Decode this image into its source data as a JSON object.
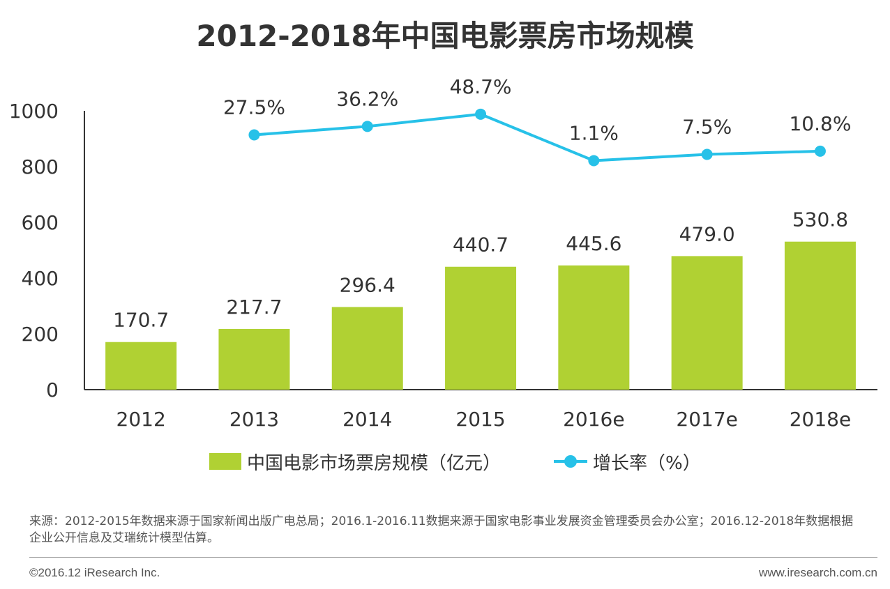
{
  "chart_data": {
    "type": "bar",
    "title": "2012-2018年中国电影票房市场规模",
    "categories": [
      "2012",
      "2013",
      "2014",
      "2015",
      "2016e",
      "2017e",
      "2018e"
    ],
    "series": [
      {
        "name": "中国电影市场票房规模（亿元）",
        "type": "bar",
        "values": [
          170.7,
          217.7,
          296.4,
          440.7,
          445.6,
          479.0,
          530.8
        ],
        "labels": [
          "170.7",
          "217.7",
          "296.4",
          "440.7",
          "445.6",
          "479.0",
          "530.8"
        ],
        "color": "#b0d133"
      },
      {
        "name": "增长率（%）",
        "type": "line",
        "values": [
          null,
          27.5,
          36.2,
          48.7,
          1.1,
          7.5,
          10.8
        ],
        "labels": [
          "",
          "27.5%",
          "36.2%",
          "48.7%",
          "1.1%",
          "7.5%",
          "10.8%"
        ],
        "color": "#27c1e8"
      }
    ],
    "yticks": [
      "0",
      "200",
      "400",
      "600",
      "800",
      "1000"
    ],
    "ylim": [
      0,
      1000
    ],
    "xlabel": "",
    "ylabel": ""
  },
  "legend": {
    "bar_label": "中国电影市场票房规模（亿元）",
    "line_label": "增长率（%）"
  },
  "footer": {
    "source": "来源：2012-2015年数据来源于国家新闻出版广电总局；2016.1-2016.11数据来源于国家电影事业发展资金管理委员会办公室；2016.12-2018年数据根据企业公开信息及艾瑞统计模型估算。",
    "copyright": "©2016.12 iResearch Inc.",
    "website": "www.iresearch.com.cn"
  }
}
